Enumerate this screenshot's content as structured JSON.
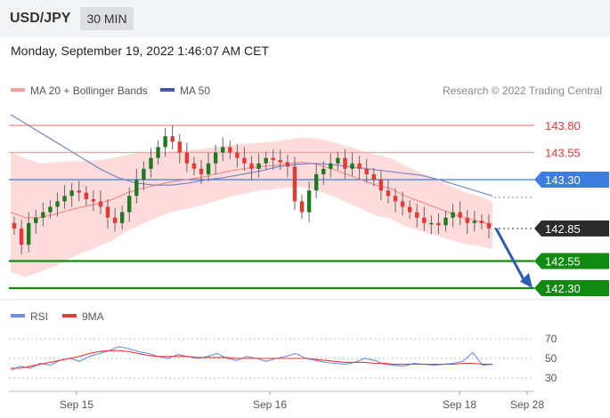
{
  "header": {
    "symbol": "USD/JPY",
    "timeframe": "30 MIN"
  },
  "datetime": "Monday, September 19, 2022 1:46:07 AM CET",
  "legend": {
    "bb_label": "MA 20 + Bollinger Bands",
    "ma50_label": "MA 50",
    "credit": "Research © 2022 Trading Central",
    "rsi_label": "RSI",
    "rsi_ma_label": "9MA"
  },
  "colors": {
    "bollinger_fill": "#ffd6d6",
    "ma20": "#f08080",
    "ma50": "#7a86c8",
    "resistance": "#e53935",
    "resistance_light": "#f7a1a1",
    "pivot": "#3d7de0",
    "support": "#118a11",
    "current": "#2b2b2b",
    "bull": "#1e7a1e",
    "bear": "#e53935",
    "rsi": "#6b8fe6",
    "rsi_ma": "#e53935",
    "arrow": "#2f5db1"
  },
  "chart_data": [
    {
      "type": "candlestick",
      "symbol": "USD/JPY",
      "interval": "30 MIN",
      "ylim": [
        142.1,
        144.3
      ],
      "x_ticks": [
        "Sep 15",
        "Sep 16",
        "Sep 18",
        "Sep 28"
      ],
      "levels": [
        {
          "label": "143.80",
          "value": 143.8,
          "role": "resistance"
        },
        {
          "label": "143.55",
          "value": 143.55,
          "role": "resistance"
        },
        {
          "label": "143.30",
          "value": 143.3,
          "role": "pivot"
        },
        {
          "label": "142.85",
          "value": 142.85,
          "role": "current"
        },
        {
          "label": "142.55",
          "value": 142.55,
          "role": "support"
        },
        {
          "label": "142.30",
          "value": 142.3,
          "role": "support"
        }
      ],
      "close": [
        142.85,
        142.7,
        142.9,
        142.95,
        143.0,
        143.05,
        143.1,
        143.15,
        143.2,
        143.18,
        143.12,
        143.1,
        143.05,
        142.95,
        142.9,
        143.0,
        143.15,
        143.3,
        143.4,
        143.5,
        143.6,
        143.7,
        143.65,
        143.55,
        143.45,
        143.4,
        143.35,
        143.45,
        143.55,
        143.6,
        143.55,
        143.5,
        143.45,
        143.4,
        143.45,
        143.5,
        143.48,
        143.46,
        143.42,
        143.1,
        143.0,
        143.2,
        143.35,
        143.4,
        143.45,
        143.5,
        143.4,
        143.45,
        143.4,
        143.35,
        143.3,
        143.2,
        143.15,
        143.1,
        143.05,
        143.0,
        142.95,
        142.9,
        142.9,
        142.88,
        142.95,
        143.0,
        142.95,
        142.9,
        142.92,
        142.9,
        142.85
      ],
      "series": [
        {
          "name": "MA 20 + Bollinger Bands",
          "values": [
            143.0,
            142.95,
            142.95,
            142.98,
            143.02,
            143.05,
            143.08,
            143.12,
            143.18,
            143.22,
            143.25,
            143.28,
            143.3,
            143.32,
            143.35,
            143.38,
            143.4,
            143.42,
            143.43,
            143.45,
            143.46,
            143.44,
            143.4,
            143.35,
            143.3,
            143.25,
            143.22,
            143.15,
            143.1,
            143.05,
            143.0,
            142.95,
            142.92,
            142.88
          ]
        },
        {
          "name": "MA 50",
          "values": [
            143.9,
            143.8,
            143.7,
            143.6,
            143.5,
            143.4,
            143.32,
            143.27,
            143.25,
            143.25,
            143.27,
            143.3,
            143.32,
            143.35,
            143.38,
            143.42,
            143.44,
            143.45,
            143.44,
            143.42,
            143.4,
            143.38,
            143.36,
            143.34,
            143.3,
            143.25,
            143.2,
            143.15
          ]
        }
      ]
    },
    {
      "type": "line",
      "ylim": [
        25,
        75
      ],
      "y_ticks": [
        70,
        50,
        30
      ],
      "series": [
        {
          "name": "RSI",
          "values": [
            38,
            42,
            40,
            45,
            43,
            48,
            50,
            47,
            52,
            55,
            58,
            62,
            60,
            57,
            55,
            52,
            50,
            54,
            52,
            50,
            52,
            55,
            50,
            48,
            52,
            50,
            47,
            50,
            52,
            55,
            50,
            48,
            46,
            45,
            44,
            46,
            50,
            48,
            44,
            43,
            42,
            45,
            44,
            43,
            44,
            45,
            47,
            56,
            43,
            44
          ]
        },
        {
          "name": "9MA",
          "values": [
            40,
            40,
            42,
            44,
            46,
            48,
            50,
            52,
            55,
            57,
            58,
            58,
            57,
            55,
            53,
            52,
            52,
            52,
            52,
            51,
            51,
            51,
            51,
            50,
            50,
            50,
            50,
            50,
            50,
            50,
            50,
            49,
            48,
            47,
            46,
            46,
            46,
            45,
            45,
            44,
            44,
            44,
            44,
            44,
            44,
            44,
            45,
            45,
            44,
            44
          ]
        }
      ]
    }
  ]
}
